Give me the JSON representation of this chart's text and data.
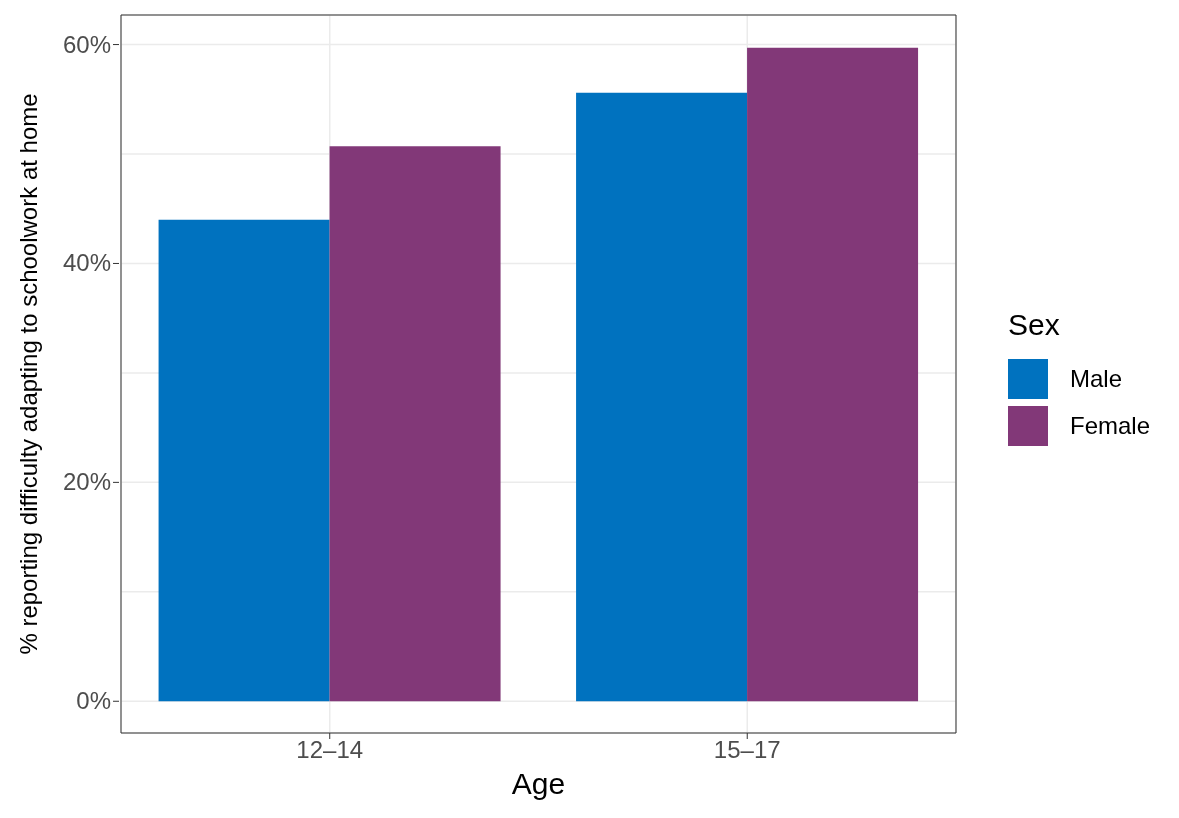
{
  "chart_data": {
    "type": "bar",
    "xlabel": "Age",
    "ylabel": "% reporting difficulty adapting to schoolwork at home",
    "legend_title": "Sex",
    "categories": [
      "12–14",
      "15–17"
    ],
    "series": [
      {
        "name": "Male",
        "color": "#0072bf",
        "values": [
          44.0,
          55.6
        ]
      },
      {
        "name": "Female",
        "color": "#823878",
        "values": [
          50.7,
          59.7
        ]
      }
    ],
    "ylim": [
      -2.9,
      62.7
    ],
    "yticks": [
      {
        "value": 0,
        "label": "0%"
      },
      {
        "value": 10,
        "label": null
      },
      {
        "value": 20,
        "label": "20%"
      },
      {
        "value": 30,
        "label": null
      },
      {
        "value": 40,
        "label": "40%"
      },
      {
        "value": 50,
        "label": null
      },
      {
        "value": 60,
        "label": "60%"
      }
    ],
    "grid": true,
    "legend": "right"
  }
}
